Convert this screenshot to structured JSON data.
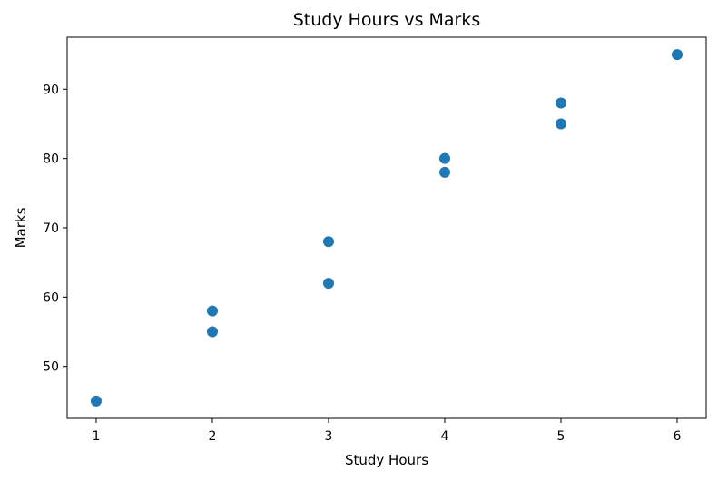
{
  "chart_data": {
    "type": "scatter",
    "title": "Study Hours vs Marks",
    "xlabel": "Study Hours",
    "ylabel": "Marks",
    "xlim": [
      0.75,
      6.25
    ],
    "ylim": [
      42.5,
      97.5
    ],
    "xticks": [
      1,
      2,
      3,
      4,
      5,
      6
    ],
    "yticks": [
      50,
      60,
      70,
      80,
      90
    ],
    "grid": false,
    "marker_color": "#1f77b4",
    "points": [
      {
        "x": 1,
        "y": 45
      },
      {
        "x": 2,
        "y": 55
      },
      {
        "x": 2,
        "y": 58
      },
      {
        "x": 3,
        "y": 62
      },
      {
        "x": 3,
        "y": 68
      },
      {
        "x": 4,
        "y": 78
      },
      {
        "x": 4,
        "y": 80
      },
      {
        "x": 5,
        "y": 85
      },
      {
        "x": 5,
        "y": 88
      },
      {
        "x": 6,
        "y": 95
      }
    ]
  }
}
